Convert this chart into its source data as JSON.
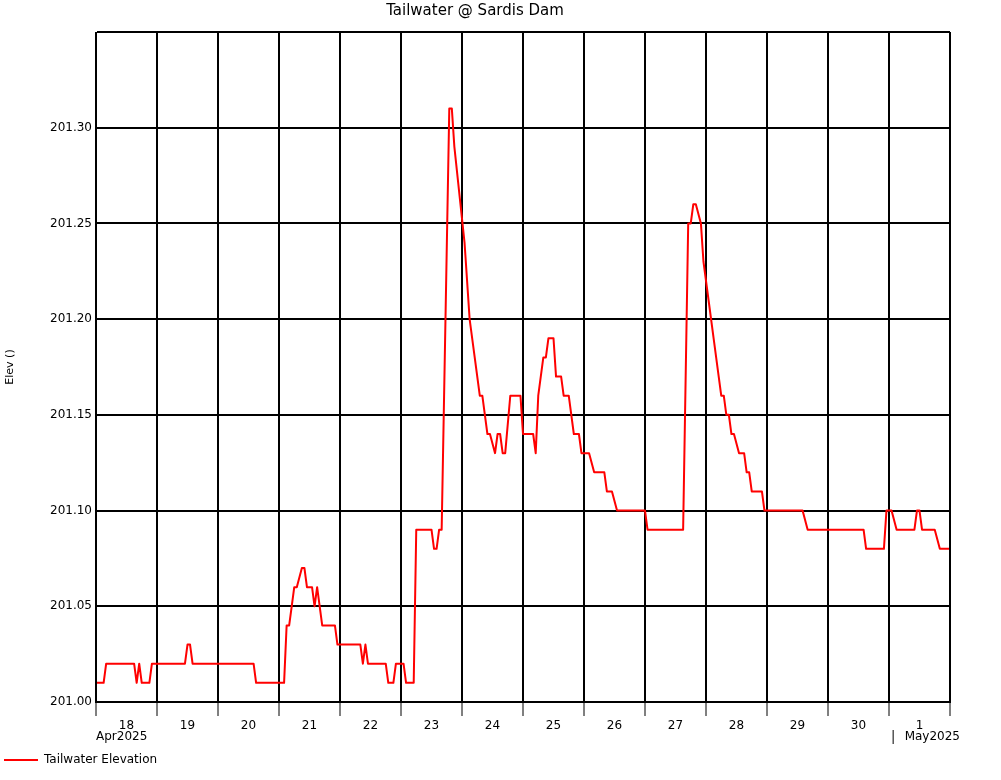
{
  "chart_data": {
    "type": "line",
    "title": "Tailwater @ Sardis Dam",
    "ylabel": "Elev ()",
    "x": [
      "2025-04-18T00:00",
      "2025-04-18T03:00",
      "2025-04-18T04:00",
      "2025-04-18T15:00",
      "2025-04-18T16:00",
      "2025-04-18T17:00",
      "2025-04-18T18:00",
      "2025-04-18T21:00",
      "2025-04-18T22:00",
      "2025-04-19T11:00",
      "2025-04-19T12:00",
      "2025-04-19T13:00",
      "2025-04-19T14:00",
      "2025-04-20T14:00",
      "2025-04-20T15:00",
      "2025-04-21T02:00",
      "2025-04-21T03:00",
      "2025-04-21T04:00",
      "2025-04-21T05:00",
      "2025-04-21T06:00",
      "2025-04-21T07:00",
      "2025-04-21T09:00",
      "2025-04-21T10:00",
      "2025-04-21T11:00",
      "2025-04-21T13:00",
      "2025-04-21T14:00",
      "2025-04-21T15:00",
      "2025-04-21T17:00",
      "2025-04-21T22:00",
      "2025-04-21T23:00",
      "2025-04-22T08:00",
      "2025-04-22T09:00",
      "2025-04-22T10:00",
      "2025-04-22T11:00",
      "2025-04-22T18:00",
      "2025-04-22T19:00",
      "2025-04-22T21:00",
      "2025-04-22T22:00",
      "2025-04-23T01:00",
      "2025-04-23T02:00",
      "2025-04-23T05:00",
      "2025-04-23T06:00",
      "2025-04-23T12:00",
      "2025-04-23T13:00",
      "2025-04-23T14:00",
      "2025-04-23T15:00",
      "2025-04-23T16:00",
      "2025-04-23T19:00",
      "2025-04-23T20:00",
      "2025-04-23T21:00",
      "2025-04-24T01:00",
      "2025-04-24T03:00",
      "2025-04-24T05:00",
      "2025-04-24T07:00",
      "2025-04-24T08:00",
      "2025-04-24T09:00",
      "2025-04-24T10:00",
      "2025-04-24T11:00",
      "2025-04-24T13:00",
      "2025-04-24T14:00",
      "2025-04-24T15:00",
      "2025-04-24T16:00",
      "2025-04-24T17:00",
      "2025-04-24T19:00",
      "2025-04-24T23:00",
      "2025-04-25T00:00",
      "2025-04-25T04:00",
      "2025-04-25T05:00",
      "2025-04-25T06:00",
      "2025-04-25T08:00",
      "2025-04-25T09:00",
      "2025-04-25T10:00",
      "2025-04-25T12:00",
      "2025-04-25T13:00",
      "2025-04-25T15:00",
      "2025-04-25T16:00",
      "2025-04-25T18:00",
      "2025-04-25T20:00",
      "2025-04-25T22:00",
      "2025-04-25T23:00",
      "2025-04-26T02:00",
      "2025-04-26T04:00",
      "2025-04-26T08:00",
      "2025-04-26T09:00",
      "2025-04-26T11:00",
      "2025-04-26T13:00",
      "2025-04-27T00:00",
      "2025-04-27T01:00",
      "2025-04-27T15:00",
      "2025-04-27T17:00",
      "2025-04-27T18:00",
      "2025-04-27T19:00",
      "2025-04-27T20:00",
      "2025-04-27T22:00",
      "2025-04-27T23:00",
      "2025-04-28T01:00",
      "2025-04-28T03:00",
      "2025-04-28T05:00",
      "2025-04-28T06:00",
      "2025-04-28T07:00",
      "2025-04-28T08:00",
      "2025-04-28T09:00",
      "2025-04-28T10:00",
      "2025-04-28T11:00",
      "2025-04-28T13:00",
      "2025-04-28T15:00",
      "2025-04-28T16:00",
      "2025-04-28T17:00",
      "2025-04-28T18:00",
      "2025-04-28T22:00",
      "2025-04-28T23:00",
      "2025-04-29T14:00",
      "2025-04-29T16:00",
      "2025-04-30T14:00",
      "2025-04-30T15:00",
      "2025-04-30T22:00",
      "2025-04-30T23:00",
      "2025-05-01T01:00",
      "2025-05-01T03:00",
      "2025-05-01T10:00",
      "2025-05-01T11:00",
      "2025-05-01T12:00",
      "2025-05-01T13:00",
      "2025-05-01T18:00",
      "2025-05-01T20:00",
      "2025-05-02T00:00"
    ],
    "series": [
      {
        "name": "Tailwater Elevation",
        "color": "#ff0000",
        "values": [
          201.01,
          201.01,
          201.02,
          201.02,
          201.01,
          201.02,
          201.01,
          201.01,
          201.02,
          201.02,
          201.03,
          201.03,
          201.02,
          201.02,
          201.01,
          201.01,
          201.04,
          201.04,
          201.05,
          201.06,
          201.06,
          201.07,
          201.07,
          201.06,
          201.06,
          201.05,
          201.06,
          201.04,
          201.04,
          201.03,
          201.03,
          201.02,
          201.03,
          201.02,
          201.02,
          201.01,
          201.01,
          201.02,
          201.02,
          201.01,
          201.01,
          201.09,
          201.09,
          201.08,
          201.08,
          201.09,
          201.09,
          201.31,
          201.31,
          201.29,
          201.24,
          201.2,
          201.18,
          201.16,
          201.16,
          201.15,
          201.14,
          201.14,
          201.13,
          201.14,
          201.14,
          201.13,
          201.13,
          201.16,
          201.16,
          201.14,
          201.14,
          201.13,
          201.16,
          201.18,
          201.18,
          201.19,
          201.19,
          201.17,
          201.17,
          201.16,
          201.16,
          201.14,
          201.14,
          201.13,
          201.13,
          201.12,
          201.12,
          201.11,
          201.11,
          201.1,
          201.1,
          201.09,
          201.09,
          201.25,
          201.25,
          201.26,
          201.26,
          201.25,
          201.23,
          201.21,
          201.19,
          201.17,
          201.16,
          201.16,
          201.15,
          201.15,
          201.14,
          201.14,
          201.13,
          201.13,
          201.12,
          201.12,
          201.11,
          201.11,
          201.1,
          201.1,
          201.09,
          201.09,
          201.08,
          201.08,
          201.1,
          201.1,
          201.09,
          201.09,
          201.1,
          201.1,
          201.09,
          201.09,
          201.08,
          201.08
        ]
      }
    ],
    "xlim": [
      "2025-04-18",
      "2025-05-02"
    ],
    "xticks": [
      {
        "value": "2025-04-18",
        "label": null
      },
      {
        "value": "2025-04-18T12:00",
        "label": "18"
      },
      {
        "value": "2025-04-19",
        "label": null
      },
      {
        "value": "2025-04-19T12:00",
        "label": "19"
      },
      {
        "value": "2025-04-20",
        "label": null
      },
      {
        "value": "2025-04-20T12:00",
        "label": "20"
      },
      {
        "value": "2025-04-21",
        "label": null
      },
      {
        "value": "2025-04-21T12:00",
        "label": "21"
      },
      {
        "value": "2025-04-22",
        "label": null
      },
      {
        "value": "2025-04-22T12:00",
        "label": "22"
      },
      {
        "value": "2025-04-23",
        "label": null
      },
      {
        "value": "2025-04-23T12:00",
        "label": "23"
      },
      {
        "value": "2025-04-24",
        "label": null
      },
      {
        "value": "2025-04-24T12:00",
        "label": "24"
      },
      {
        "value": "2025-04-25",
        "label": null
      },
      {
        "value": "2025-04-25T12:00",
        "label": "25"
      },
      {
        "value": "2025-04-26",
        "label": null
      },
      {
        "value": "2025-04-26T12:00",
        "label": "26"
      },
      {
        "value": "2025-04-27",
        "label": null
      },
      {
        "value": "2025-04-27T12:00",
        "label": "27"
      },
      {
        "value": "2025-04-28",
        "label": null
      },
      {
        "value": "2025-04-28T12:00",
        "label": "28"
      },
      {
        "value": "2025-04-29",
        "label": null
      },
      {
        "value": "2025-04-29T12:00",
        "label": "29"
      },
      {
        "value": "2025-04-30",
        "label": null
      },
      {
        "value": "2025-04-30T12:00",
        "label": "30"
      },
      {
        "value": "2025-05-01",
        "label": null
      },
      {
        "value": "2025-05-01T12:00",
        "label": "1"
      },
      {
        "value": "2025-05-02",
        "label": null
      }
    ],
    "ylim": [
      201.0,
      201.35
    ],
    "yticks": [
      {
        "value": 201.0,
        "label": "201.00"
      },
      {
        "value": 201.05,
        "label": "201.05"
      },
      {
        "value": 201.1,
        "label": "201.10"
      },
      {
        "value": 201.15,
        "label": "201.15"
      },
      {
        "value": 201.2,
        "label": "201.20"
      },
      {
        "value": 201.25,
        "label": "201.25"
      },
      {
        "value": 201.3,
        "label": "201.30"
      },
      {
        "value": 201.35,
        "label": null
      }
    ],
    "grid": true,
    "legend": "bottom left",
    "marker": "none",
    "line_style": "solid",
    "annotations": [
      "Apr2025",
      "May2025"
    ]
  }
}
